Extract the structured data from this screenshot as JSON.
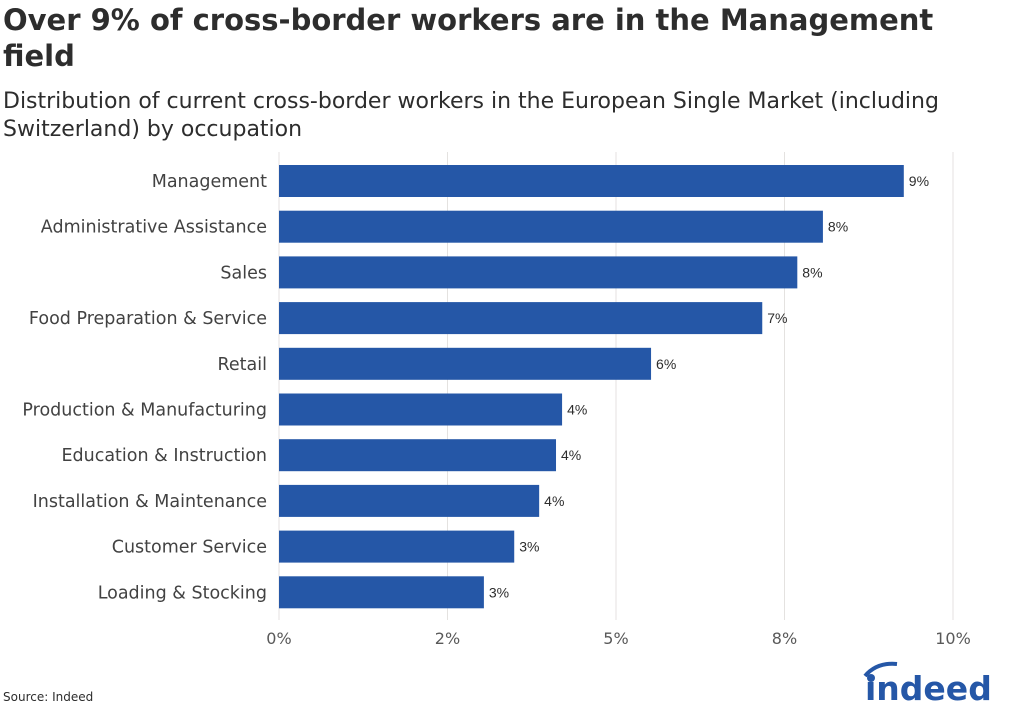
{
  "chart_data": {
    "type": "bar",
    "orientation": "horizontal",
    "title": "Over 9% of cross-border workers are in the Management field",
    "subtitle": "Distribution of current cross-border workers in the European Single Market (including Switzerland) by occupation",
    "categories": [
      "Management",
      "Administrative Assistance",
      "Sales",
      "Food Preparation & Service",
      "Retail",
      "Production & Manufacturing",
      "Education & Instruction",
      "Installation & Maintenance",
      "Customer Service",
      "Loading & Stocking"
    ],
    "values": [
      9.27,
      8.07,
      7.69,
      7.17,
      5.52,
      4.2,
      4.11,
      3.86,
      3.49,
      3.04
    ],
    "data_labels": [
      "9%",
      "8%",
      "8%",
      "7%",
      "6%",
      "4%",
      "4%",
      "4%",
      "3%",
      "3%"
    ],
    "xlim": [
      0,
      10
    ],
    "x_ticks": [
      0,
      2.5,
      5,
      7.5,
      10
    ],
    "x_tick_labels": [
      "0%",
      "2%",
      "5%",
      "8%",
      "10%"
    ],
    "grid": "vertical",
    "bar_color": "#2557a7",
    "source": "Source: Indeed"
  },
  "brand": {
    "logo_text": "indeed",
    "color": "#2557a7"
  }
}
